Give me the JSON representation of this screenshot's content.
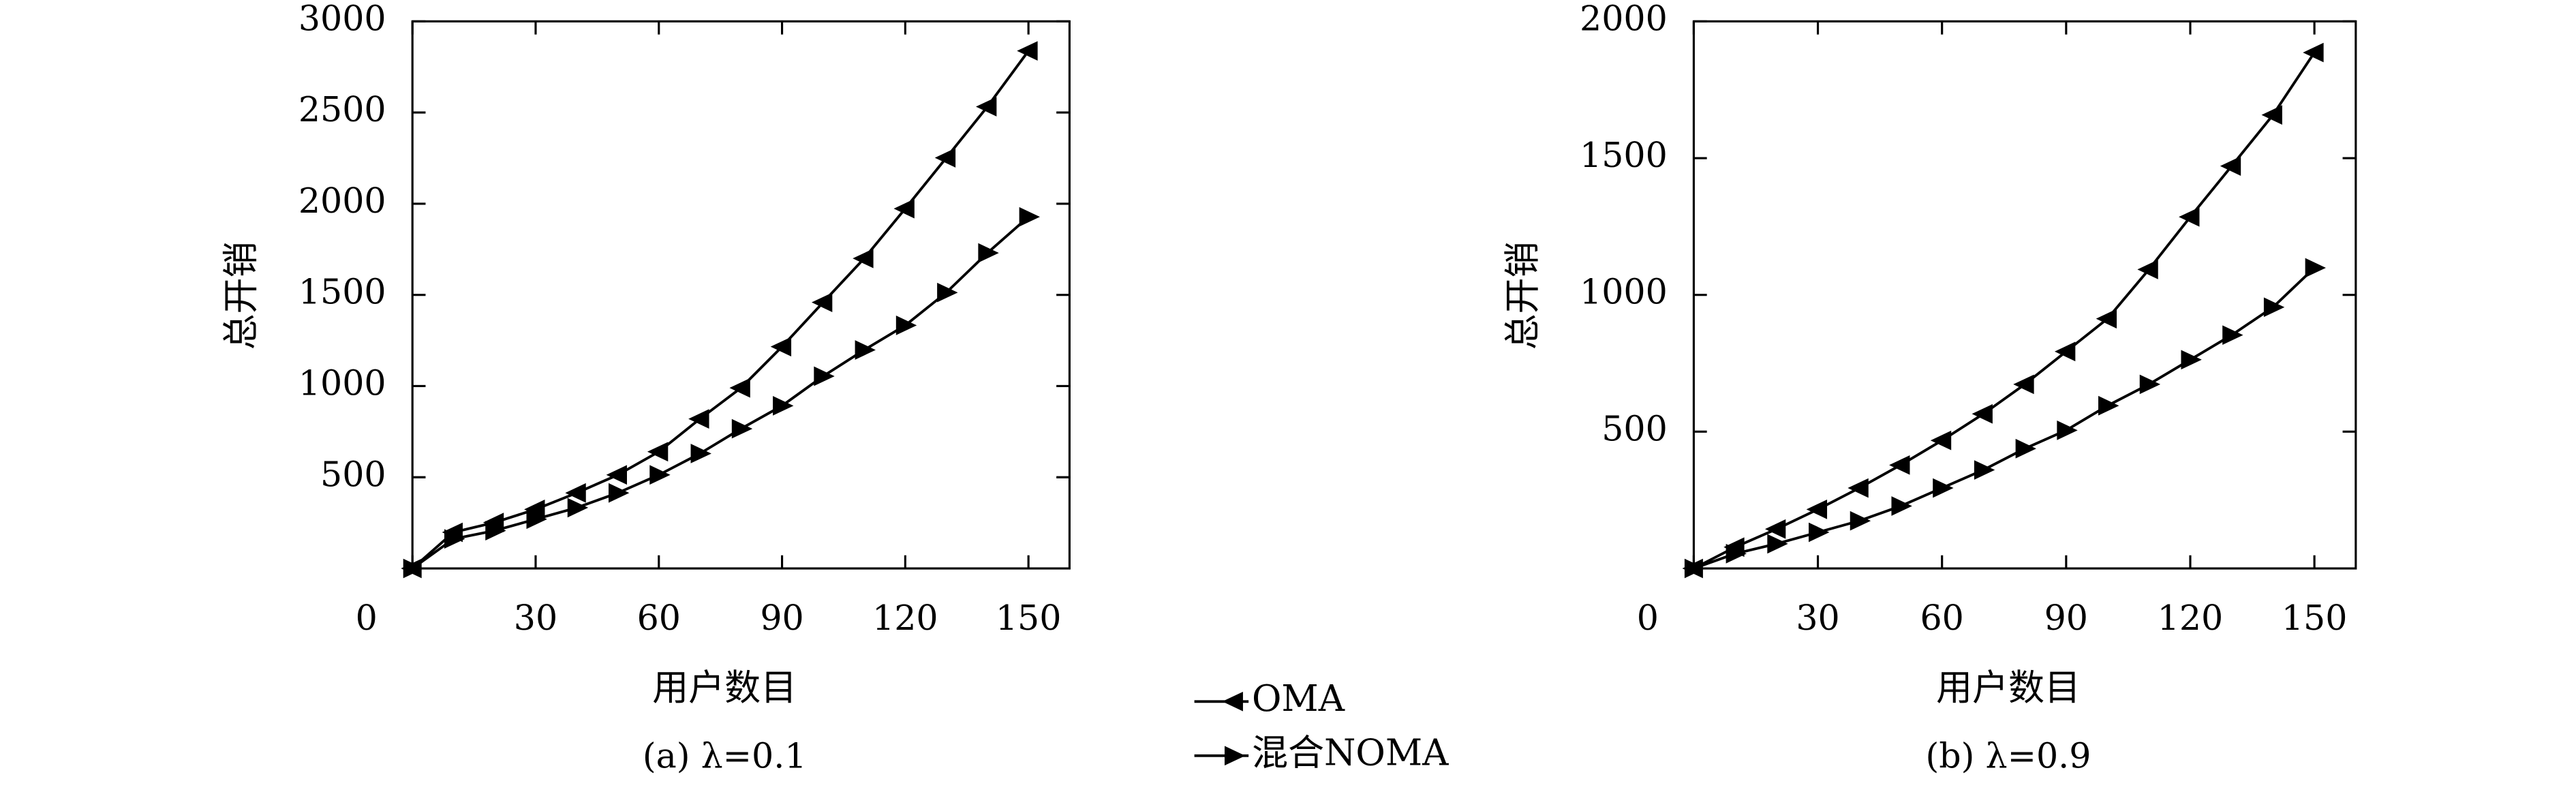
{
  "chart_data": [
    {
      "type": "line",
      "ylabel": "总开销",
      "xlabel": "用户数目",
      "caption": "(a) λ=0.1",
      "x": [
        0,
        10,
        20,
        30,
        40,
        50,
        60,
        70,
        80,
        90,
        100,
        110,
        120,
        130,
        140,
        150
      ],
      "xlim": [
        0,
        160
      ],
      "xticks": [
        0,
        30,
        60,
        90,
        120,
        150
      ],
      "ylim": [
        0,
        3000
      ],
      "yticks": [
        500,
        1000,
        1500,
        2000,
        2500,
        3000
      ],
      "series": [
        {
          "name": "OMA",
          "color": "#000000",
          "marker": "triangle-left",
          "values": [
            0,
            198,
            252,
            324,
            414,
            513,
            640,
            820,
            990,
            1216,
            1459,
            1700,
            1973,
            2252,
            2532,
            2838
          ]
        },
        {
          "name": "混合NOMA",
          "color": "#000000",
          "marker": "triangle-right",
          "values": [
            0,
            162,
            207,
            270,
            333,
            414,
            513,
            630,
            766,
            892,
            1054,
            1198,
            1333,
            1513,
            1730,
            1928
          ]
        }
      ]
    },
    {
      "type": "line",
      "ylabel": "总开销",
      "xlabel": "用户数目",
      "caption": "(b) λ=0.9",
      "x": [
        0,
        10,
        20,
        30,
        40,
        50,
        60,
        70,
        80,
        90,
        100,
        110,
        120,
        130,
        140,
        150
      ],
      "xlim": [
        0,
        160
      ],
      "xticks": [
        0,
        30,
        60,
        90,
        120,
        150
      ],
      "ylim": [
        0,
        2000
      ],
      "yticks": [
        500,
        1000,
        1500,
        2000
      ],
      "series": [
        {
          "color": "#000000",
          "marker": "triangle-left",
          "values": [
            0,
            78,
            144,
            216,
            294,
            378,
            468,
            565,
            673,
            793,
            913,
            1093,
            1285,
            1471,
            1658,
            1886
          ]
        },
        {
          "color": "#000000",
          "marker": "triangle-right",
          "values": [
            0,
            54,
            90,
            132,
            174,
            228,
            294,
            360,
            438,
            505,
            595,
            673,
            763,
            853,
            955,
            1099
          ]
        }
      ]
    }
  ]
}
